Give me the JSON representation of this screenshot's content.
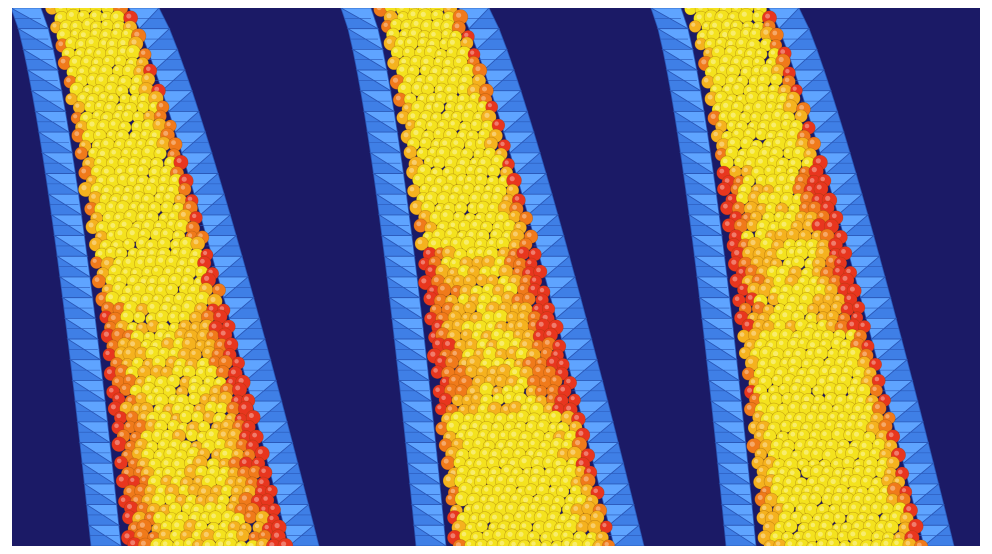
{
  "colors": {
    "background": "#1b1a66",
    "frame": "#ffffff",
    "wall_light": "#5fa4ff",
    "wall_mid": "#3f7fe6",
    "wall_dark": "#2a58b8",
    "particle_hot": "#e8361e",
    "particle_warm": "#f07a1a",
    "particle_mid": "#f5b21e",
    "particle_cool": "#f4e21e"
  },
  "panels": [
    {
      "name": "panel-left",
      "hot_regions": [
        "edges",
        "lower-core"
      ]
    },
    {
      "name": "panel-middle",
      "hot_regions": [
        "edges",
        "middle-band"
      ]
    },
    {
      "name": "panel-right",
      "hot_regions": [
        "edges",
        "upper-band"
      ]
    }
  ]
}
